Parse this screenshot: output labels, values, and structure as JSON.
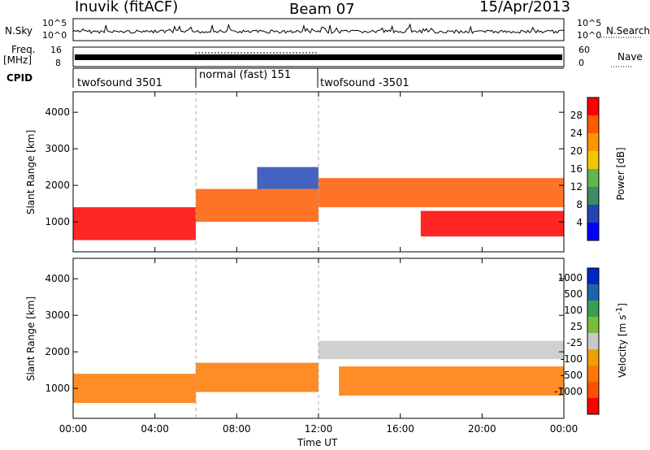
{
  "header": {
    "station": "Inuvik (fitACF)",
    "beam": "Beam 07",
    "date": "15/Apr/2013"
  },
  "noise_panel": {
    "left_label": "N.Sky",
    "right_label": "N.Search",
    "left_ticks": [
      "10^5",
      "10^0"
    ],
    "right_ticks": [
      "10^5",
      "10^0"
    ]
  },
  "freq_panel": {
    "left_label_top": "Freq.",
    "left_label_unit": "[MHz]",
    "right_label": "Nave",
    "left_ticks": [
      "16",
      "8"
    ],
    "right_ticks": [
      "60",
      "0"
    ]
  },
  "cpid_panel": {
    "label": "CPID",
    "segments": [
      {
        "name": "twofsound 3501",
        "start": "00:00",
        "end": "06:00"
      },
      {
        "name": "normal (fast) 151",
        "start": "06:00",
        "end": "12:00"
      },
      {
        "name": "twofsound -3501",
        "start": "12:00",
        "end": "24:00"
      }
    ]
  },
  "colors": {
    "power": [
      "#0000ff",
      "#2346b4",
      "#3c8c64",
      "#64b450",
      "#f0c800",
      "#ff9600",
      "#ff5a00",
      "#ff0000"
    ],
    "velocity": [
      "#0026c8",
      "#1e64aa",
      "#37a050",
      "#78be3c",
      "#c8c8c8",
      "#f0a000",
      "#ff7800",
      "#ff5000",
      "#ff0000"
    ]
  },
  "chart_data": [
    {
      "type": "heatmap",
      "name": "power",
      "ylabel": "Slant Range [km]",
      "xlabel": "",
      "ylim": [
        180,
        4560
      ],
      "yticks": [
        1000,
        2000,
        3000,
        4000
      ],
      "colorbar_label": "Power [dB]",
      "colorbar_ticks": [
        "28",
        "24",
        "20",
        "16",
        "12",
        "8",
        "4"
      ],
      "bands": [
        {
          "start_h": 0.0,
          "end_h": 6.0,
          "lo": 500,
          "hi": 1400,
          "level": 7
        },
        {
          "start_h": 6.0,
          "end_h": 12.0,
          "lo": 1000,
          "hi": 1900,
          "level": 6
        },
        {
          "start_h": 12.0,
          "end_h": 24.0,
          "lo": 1400,
          "hi": 2200,
          "level": 6
        },
        {
          "start_h": 17.0,
          "end_h": 24.0,
          "lo": 600,
          "hi": 1300,
          "level": 7
        },
        {
          "start_h": 9.0,
          "end_h": 12.0,
          "lo": 1900,
          "hi": 2500,
          "level": 1
        }
      ]
    },
    {
      "type": "heatmap",
      "name": "velocity",
      "ylabel": "Slant Range [km]",
      "xlabel": "Time UT",
      "ylim": [
        180,
        4560
      ],
      "yticks": [
        1000,
        2000,
        3000,
        4000
      ],
      "xticks": [
        "00:00",
        "04:00",
        "08:00",
        "12:00",
        "16:00",
        "20:00",
        "00:00"
      ],
      "colorbar_label": "Velocity [m s^-1]",
      "colorbar_ticks": [
        "1000",
        "500",
        "100",
        "25",
        "-25",
        "-100",
        "-500",
        "-1000"
      ],
      "bands": [
        {
          "start_h": 0.0,
          "end_h": 6.0,
          "lo": 600,
          "hi": 1400,
          "level": 6
        },
        {
          "start_h": 6.0,
          "end_h": 12.0,
          "lo": 900,
          "hi": 1700,
          "level": 6
        },
        {
          "start_h": 12.0,
          "end_h": 24.0,
          "lo": 1800,
          "hi": 2300,
          "level": 4
        },
        {
          "start_h": 13.0,
          "end_h": 24.0,
          "lo": 800,
          "hi": 1600,
          "level": 6
        }
      ]
    }
  ]
}
